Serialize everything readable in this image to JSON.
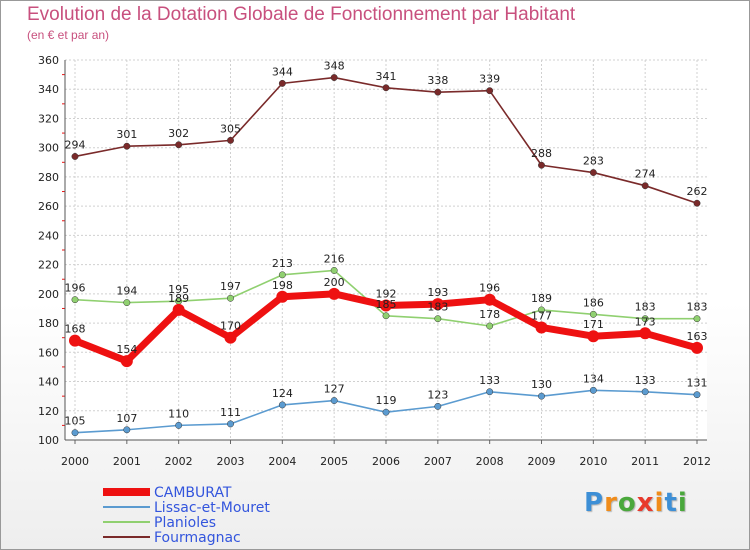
{
  "header": {
    "title": "Evolution de la Dotation Globale de Fonctionnement par Habitant",
    "subtitle": "(en € et par an)"
  },
  "logo": {
    "letters": [
      "P",
      "r",
      "o",
      "x",
      "i",
      "t",
      "i"
    ],
    "colors": [
      "#3d8fd6",
      "#f08c1a",
      "#4aa83c",
      "#e83a2c",
      "#f08c1a",
      "#3d8fd6",
      "#4aa83c"
    ]
  },
  "chart_data": {
    "type": "line",
    "title": "Evolution de la Dotation Globale de Fonctionnement par Habitant",
    "subtitle": "(en € et par an)",
    "xlabel": "",
    "ylabel": "",
    "x": [
      "2000",
      "2001",
      "2002",
      "2003",
      "2004",
      "2005",
      "2006",
      "2007",
      "2008",
      "2009",
      "2010",
      "2011",
      "2012"
    ],
    "ylim": [
      100,
      360
    ],
    "yticks": [
      100,
      120,
      140,
      160,
      180,
      200,
      220,
      240,
      260,
      280,
      300,
      320,
      340,
      360
    ],
    "grid": true,
    "legend_position": "bottom-left",
    "series": [
      {
        "name": "Fourmagnac",
        "color": "#7a2a2a",
        "values": [
          294,
          301,
          302,
          305,
          344,
          348,
          341,
          338,
          339,
          288,
          283,
          274,
          262
        ]
      },
      {
        "name": "Planioles",
        "color": "#90d070",
        "values": [
          196,
          194,
          195,
          197,
          213,
          216,
          185,
          183,
          178,
          189,
          186,
          183,
          183
        ]
      },
      {
        "name": "Lissac-et-Mouret",
        "color": "#5b9bd0",
        "values": [
          105,
          107,
          110,
          111,
          124,
          127,
          119,
          123,
          133,
          130,
          134,
          133,
          131
        ]
      },
      {
        "name": "CAMBURAT",
        "color": "#ee1111",
        "values": [
          168,
          154,
          189,
          170,
          198,
          200,
          192,
          193,
          196,
          177,
          171,
          173,
          163
        ]
      }
    ],
    "legend": [
      {
        "name": "CAMBURAT",
        "color": "#ee1111",
        "text_color": "#3355dd"
      },
      {
        "name": "Lissac-et-Mouret",
        "color": "#5b9bd0",
        "text_color": "#3355dd"
      },
      {
        "name": "Planioles",
        "color": "#90d070",
        "text_color": "#3355dd"
      },
      {
        "name": "Fourmagnac",
        "color": "#7a2a2a",
        "text_color": "#3355dd"
      }
    ]
  }
}
